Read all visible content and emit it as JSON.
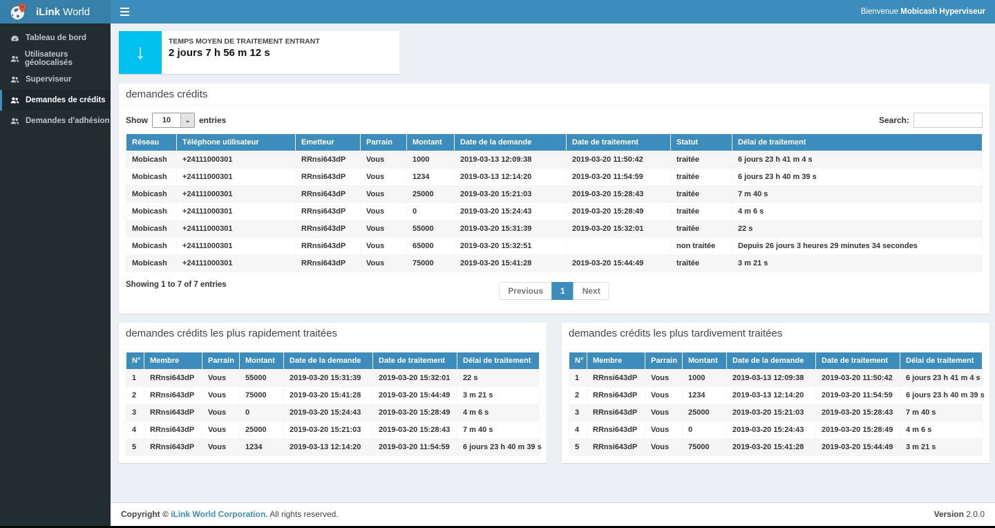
{
  "colors": {
    "accent": "#3c8dbc",
    "logo_bg": "#367fa9",
    "aqua": "#00c0ef",
    "sidebar_bg": "#222d32",
    "content_bg": "#ecf0f5"
  },
  "header": {
    "brand_bold": "iLink",
    "brand_light": " World",
    "welcome_prefix": "Bienvenue ",
    "welcome_user": "Mobicash Hyperviseur"
  },
  "sidebar": {
    "items": [
      {
        "label": "Tableau de bord",
        "icon": "dashboard-icon",
        "active": false
      },
      {
        "label": "Utilisateurs géolocalisés",
        "icon": "users-icon",
        "active": false
      },
      {
        "label": "Superviseur",
        "icon": "users-icon",
        "active": false
      },
      {
        "label": "Demandes de crédits",
        "icon": "users-icon",
        "active": true
      },
      {
        "label": "Demandes d'adhésion",
        "icon": "users-icon",
        "active": false
      }
    ]
  },
  "infobox": {
    "icon": "arrow-down-icon",
    "arrow_glyph": "↓",
    "label": "TEMPS MOYEN DE TRAITEMENT ENTRANT",
    "value": "2 jours 7 h 56 m 12 s"
  },
  "main_panel": {
    "title": "demandes crédits",
    "show_label": "Show",
    "page_size": "10",
    "entries_label": "entries",
    "search_label": "Search:",
    "search_value": "",
    "headers": [
      "Réseau",
      "Téléphone utilisateur",
      "Emetteur",
      "Parrain",
      "Montant",
      "Date de la demande",
      "Date de traitement",
      "Statut",
      "Délai de traitement"
    ],
    "rows": [
      [
        "Mobicash",
        "+24111000301",
        "RRnsi643dP",
        "Vous",
        "1000",
        "2019-03-13 12:09:38",
        "2019-03-20 11:50:42",
        "traitée",
        "6 jours 23 h 41 m 4 s"
      ],
      [
        "Mobicash",
        "+24111000301",
        "RRnsi643dP",
        "Vous",
        "1234",
        "2019-03-13 12:14:20",
        "2019-03-20 11:54:59",
        "traitée",
        "6 jours 23 h 40 m 39 s"
      ],
      [
        "Mobicash",
        "+24111000301",
        "RRnsi643dP",
        "Vous",
        "25000",
        "2019-03-20 15:21:03",
        "2019-03-20 15:28:43",
        "traitée",
        "7 m 40 s"
      ],
      [
        "Mobicash",
        "+24111000301",
        "RRnsi643dP",
        "Vous",
        "0",
        "2019-03-20 15:24:43",
        "2019-03-20 15:28:49",
        "traitée",
        "4 m 6 s"
      ],
      [
        "Mobicash",
        "+24111000301",
        "RRnsi643dP",
        "Vous",
        "55000",
        "2019-03-20 15:31:39",
        "2019-03-20 15:32:01",
        "traitée",
        "22 s"
      ],
      [
        "Mobicash",
        "+24111000301",
        "RRnsi643dP",
        "Vous",
        "65000",
        "2019-03-20 15:32:51",
        "",
        "non traitée",
        "Depuis 26 jours 3 heures 29 minutes 34 secondes"
      ],
      [
        "Mobicash",
        "+24111000301",
        "RRnsi643dP",
        "Vous",
        "75000",
        "2019-03-20 15:41:28",
        "2019-03-20 15:44:49",
        "traitée",
        "3 m 21 s"
      ]
    ],
    "summary": "Showing 1 to 7 of 7 entries",
    "pagination": {
      "previous": "Previous",
      "page": "1",
      "next": "Next"
    }
  },
  "fast_panel": {
    "title": "demandes crédits les plus rapidement traitées",
    "headers": [
      "N°",
      "Membre",
      "Parrain",
      "Montant",
      "Date de la demande",
      "Date de traitement",
      "Délai de traitement"
    ],
    "rows": [
      [
        "1",
        "RRnsi643dP",
        "Vous",
        "55000",
        "2019-03-20 15:31:39",
        "2019-03-20 15:32:01",
        "22 s"
      ],
      [
        "2",
        "RRnsi643dP",
        "Vous",
        "75000",
        "2019-03-20 15:41:28",
        "2019-03-20 15:44:49",
        "3 m 21 s"
      ],
      [
        "3",
        "RRnsi643dP",
        "Vous",
        "0",
        "2019-03-20 15:24:43",
        "2019-03-20 15:28:49",
        "4 m 6 s"
      ],
      [
        "4",
        "RRnsi643dP",
        "Vous",
        "25000",
        "2019-03-20 15:21:03",
        "2019-03-20 15:28:43",
        "7 m 40 s"
      ],
      [
        "5",
        "RRnsi643dP",
        "Vous",
        "1234",
        "2019-03-13 12:14:20",
        "2019-03-20 11:54:59",
        "6 jours 23 h 40 m 39 s"
      ]
    ]
  },
  "late_panel": {
    "title": "demandes crédits les plus tardivement traitées",
    "headers": [
      "N°",
      "Membre",
      "Parrain",
      "Montant",
      "Date de la demande",
      "Date de traitement",
      "Délai de traitement"
    ],
    "rows": [
      [
        "1",
        "RRnsi643dP",
        "Vous",
        "1000",
        "2019-03-13 12:09:38",
        "2019-03-20 11:50:42",
        "6 jours 23 h 41 m 4 s"
      ],
      [
        "2",
        "RRnsi643dP",
        "Vous",
        "1234",
        "2019-03-13 12:14:20",
        "2019-03-20 11:54:59",
        "6 jours 23 h 40 m 39 s"
      ],
      [
        "3",
        "RRnsi643dP",
        "Vous",
        "25000",
        "2019-03-20 15:21:03",
        "2019-03-20 15:28:43",
        "7 m 40 s"
      ],
      [
        "4",
        "RRnsi643dP",
        "Vous",
        "0",
        "2019-03-20 15:24:43",
        "2019-03-20 15:28:49",
        "4 m 6 s"
      ],
      [
        "5",
        "RRnsi643dP",
        "Vous",
        "75000",
        "2019-03-20 15:41:28",
        "2019-03-20 15:44:49",
        "3 m 21 s"
      ]
    ]
  },
  "footer": {
    "copyright_label": "Copyright © ",
    "company": "iLink World Corporation.",
    "rights": " All rights reserved.",
    "version_label": "Version",
    "version_value": " 2.0.0"
  }
}
